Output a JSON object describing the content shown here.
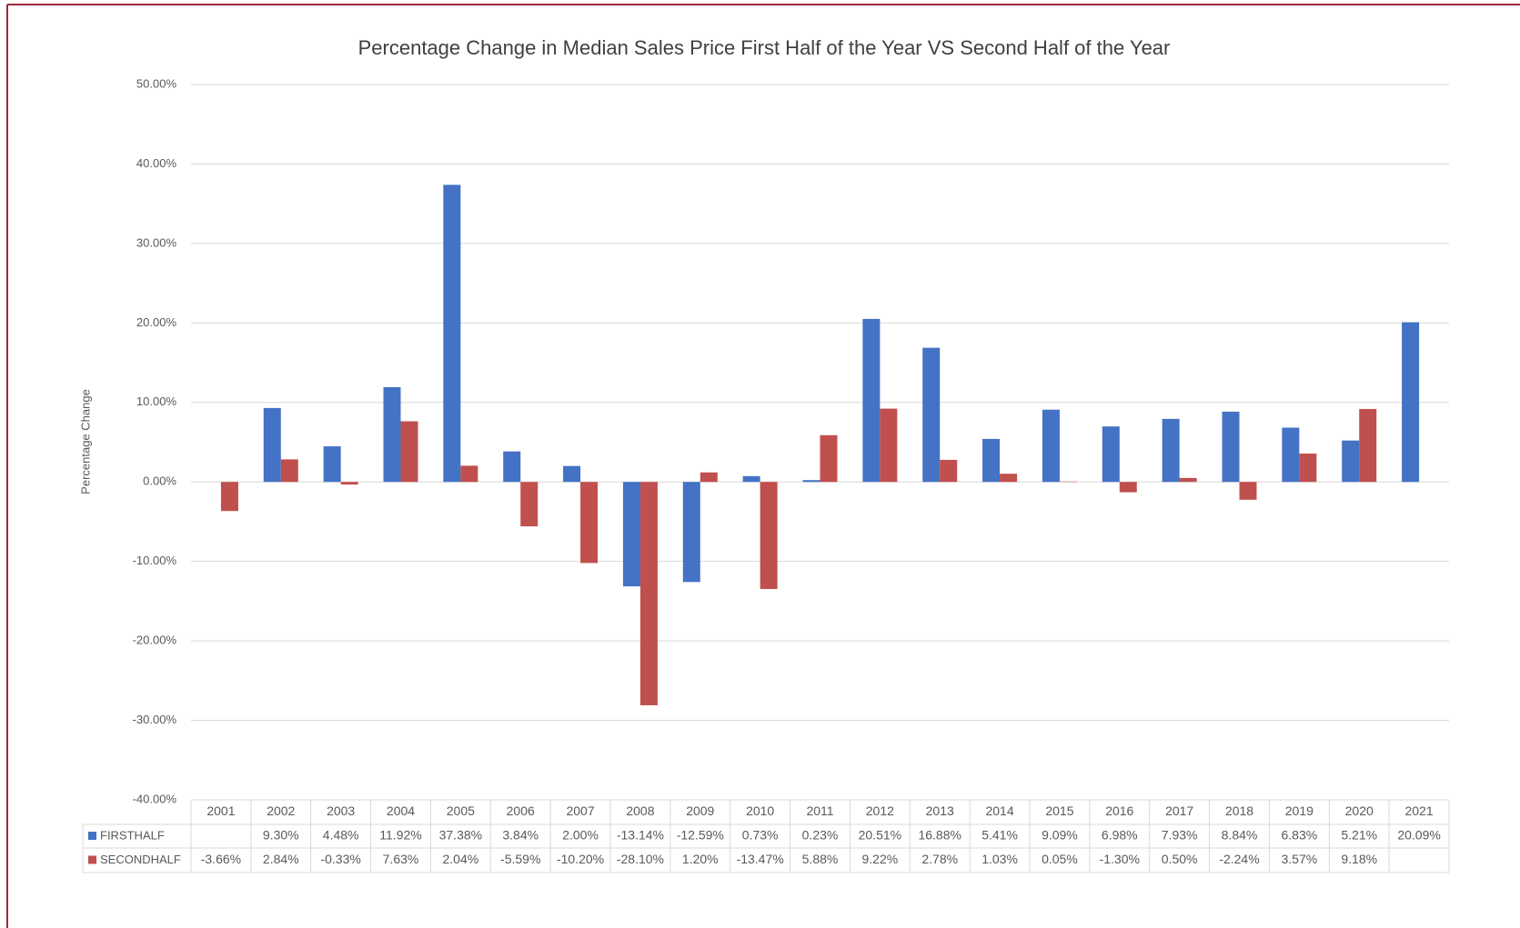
{
  "chart_data": {
    "type": "bar",
    "title": "Percentage Change in Median Sales Price First Half of the Year VS Second Half of the Year",
    "y_label": "Percentage Change",
    "categories": [
      "2001",
      "2002",
      "2003",
      "2004",
      "2005",
      "2006",
      "2007",
      "2008",
      "2009",
      "2010",
      "2011",
      "2012",
      "2013",
      "2014",
      "2015",
      "2016",
      "2017",
      "2018",
      "2019",
      "2020",
      "2021"
    ],
    "series": [
      {
        "name": "FIRSTHALF",
        "color": "#4472c4",
        "values": [
          null,
          9.3,
          4.48,
          11.92,
          37.38,
          3.84,
          2.0,
          -13.14,
          -12.59,
          0.73,
          0.23,
          20.51,
          16.88,
          5.41,
          9.09,
          6.98,
          7.93,
          8.84,
          6.83,
          5.21,
          20.09
        ],
        "value_labels": [
          null,
          "9.30%",
          "4.48%",
          "11.92%",
          "37.38%",
          "3.84%",
          "2.00%",
          "-13.14%",
          "-12.59%",
          "0.73%",
          "0.23%",
          "20.51%",
          "16.88%",
          "5.41%",
          "9.09%",
          "6.98%",
          "7.93%",
          "8.84%",
          "6.83%",
          "5.21%",
          "20.09%"
        ]
      },
      {
        "name": "SECONDHALF",
        "color": "#c0504d",
        "values": [
          -3.66,
          2.84,
          -0.33,
          7.63,
          2.04,
          -5.59,
          -10.2,
          -28.1,
          1.2,
          -13.47,
          5.88,
          9.22,
          2.78,
          1.03,
          0.05,
          -1.3,
          0.5,
          -2.24,
          3.57,
          9.18,
          null
        ],
        "value_labels": [
          "-3.66%",
          "2.84%",
          "-0.33%",
          "7.63%",
          "2.04%",
          "-5.59%",
          "-10.20%",
          "-28.10%",
          "1.20%",
          "-13.47%",
          "5.88%",
          "9.22%",
          "2.78%",
          "1.03%",
          "0.05%",
          "-1.30%",
          "0.50%",
          "-2.24%",
          "3.57%",
          "9.18%",
          null
        ]
      }
    ],
    "ylim": [
      -40,
      50
    ],
    "yticks": [
      {
        "value": -40,
        "label": "-40.00%"
      },
      {
        "value": -30,
        "label": "-30.00%"
      },
      {
        "value": -20,
        "label": "-20.00%"
      },
      {
        "value": -10,
        "label": "-10.00%"
      },
      {
        "value": 0,
        "label": "0.00%"
      },
      {
        "value": 10,
        "label": "10.00%"
      },
      {
        "value": 20,
        "label": "20.00%"
      },
      {
        "value": 30,
        "label": "30.00%"
      },
      {
        "value": 40,
        "label": "40.00%"
      },
      {
        "value": 50,
        "label": "50.00%"
      }
    ],
    "grid": true
  }
}
